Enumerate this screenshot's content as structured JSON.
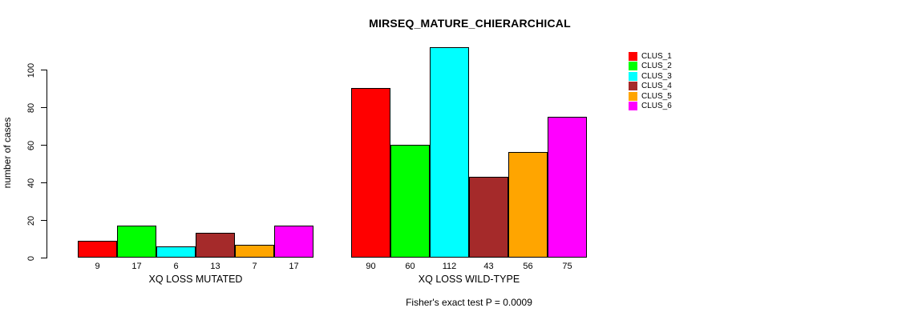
{
  "chart": {
    "title": "MIRSEQ_MATURE_CHIERARCHICAL",
    "ylabel": "number of cases",
    "footnote": "Fisher's exact test P = 0.0009"
  },
  "chart_data": {
    "type": "bar",
    "title": "MIRSEQ_MATURE_CHIERARCHICAL",
    "xlabel": "",
    "ylabel": "number of cases",
    "ylim": [
      0,
      115
    ],
    "y_ticks": [
      0,
      20,
      40,
      60,
      80,
      100
    ],
    "grid": false,
    "legend_position": "right",
    "groups": [
      {
        "label": "XQ LOSS MUTATED",
        "values": [
          9,
          17,
          6,
          13,
          7,
          17
        ]
      },
      {
        "label": "XQ LOSS WILD-TYPE",
        "values": [
          90,
          60,
          112,
          43,
          56,
          75
        ]
      }
    ],
    "series": [
      {
        "name": "CLUS_1",
        "color": "#ff0000"
      },
      {
        "name": "CLUS_2",
        "color": "#00ff00"
      },
      {
        "name": "CLUS_3",
        "color": "#00ffff"
      },
      {
        "name": "CLUS_4",
        "color": "#a52a2a"
      },
      {
        "name": "CLUS_5",
        "color": "#ffa500"
      },
      {
        "name": "CLUS_6",
        "color": "#ff00ff"
      }
    ],
    "annotation": "Fisher's exact test P = 0.0009"
  }
}
